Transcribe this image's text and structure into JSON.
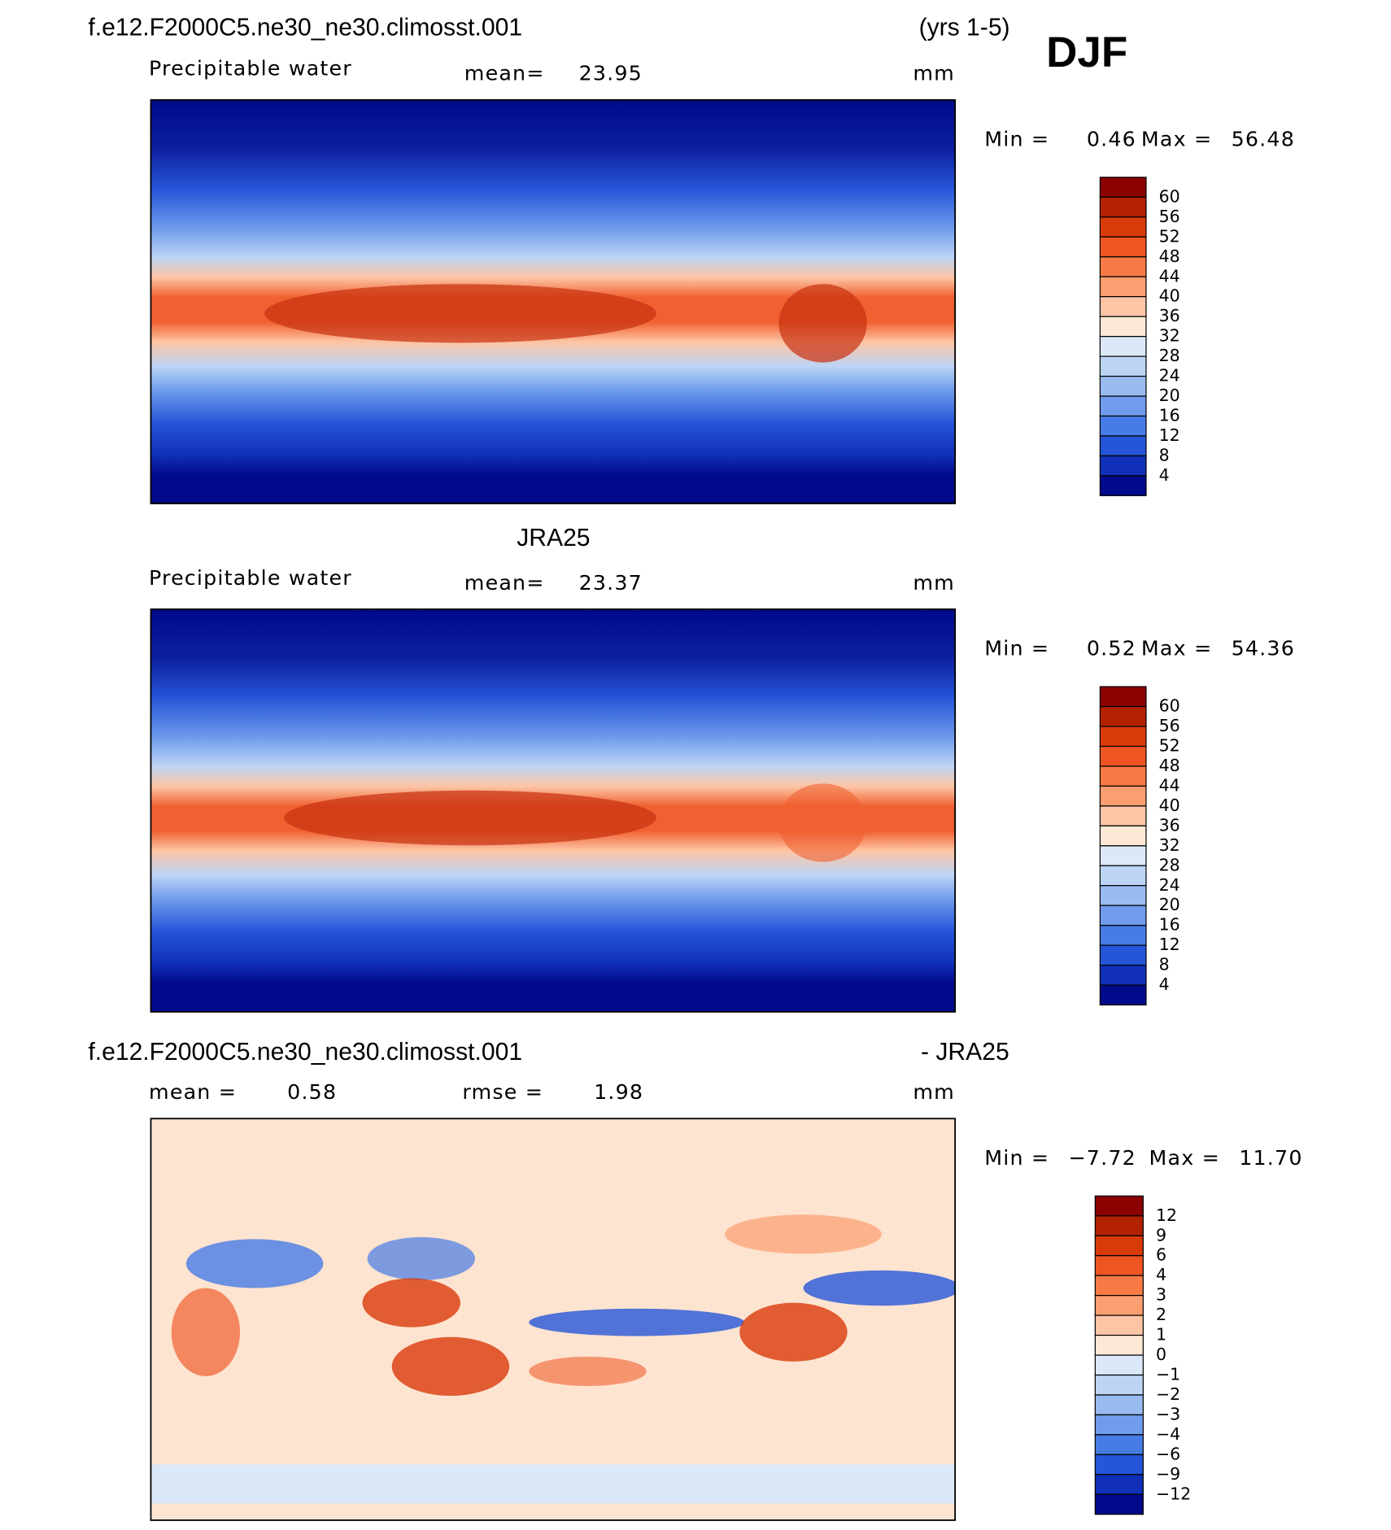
{
  "header": {
    "case": "f.e12.F2000C5.ne30_ne30.climosst.001",
    "years": "(yrs 1-5)",
    "season": "DJF"
  },
  "panels": [
    {
      "variable": "Precipitable water",
      "mean_label": "mean=",
      "mean": "23.95",
      "units": "mm",
      "min_label": "Min =",
      "min": "0.46",
      "max_label": "Max =",
      "max": "56.48",
      "colorbar": [
        "60",
        "56",
        "52",
        "48",
        "44",
        "40",
        "36",
        "32",
        "28",
        "24",
        "20",
        "16",
        "12",
        "8",
        "4"
      ]
    },
    {
      "title": "JRA25",
      "variable": "Precipitable water",
      "mean_label": "mean=",
      "mean": "23.37",
      "units": "mm",
      "min_label": "Min =",
      "min": "0.52",
      "max_label": "Max =",
      "max": "54.36",
      "colorbar": [
        "60",
        "56",
        "52",
        "48",
        "44",
        "40",
        "36",
        "32",
        "28",
        "24",
        "20",
        "16",
        "12",
        "8",
        "4"
      ]
    },
    {
      "title": "f.e12.F2000C5.ne30_ne30.climosst.001",
      "title_suffix": "- JRA25",
      "mean_label": "mean =",
      "mean": "0.58",
      "rmse_label": "rmse =",
      "rmse": "1.98",
      "units": "mm",
      "min_label": "Min =",
      "min": "−7.72",
      "max_label": "Max =",
      "max": "11.70",
      "colorbar": [
        "12",
        "9",
        "6",
        "4",
        "3",
        "2",
        "1",
        "0",
        "−1",
        "−2",
        "−3",
        "−4",
        "−6",
        "−9",
        "−12"
      ]
    }
  ]
}
